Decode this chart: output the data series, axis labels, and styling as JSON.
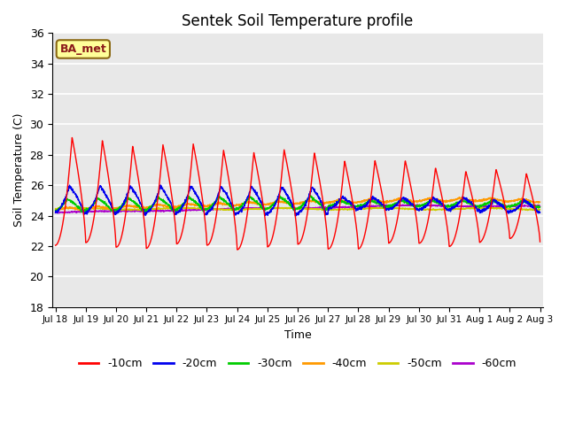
{
  "title": "Sentek Soil Temperature profile",
  "xlabel": "Time",
  "ylabel": "Soil Temperature (C)",
  "ylim": [
    18,
    36
  ],
  "yticks": [
    18,
    20,
    22,
    24,
    26,
    28,
    30,
    32,
    34,
    36
  ],
  "plot_bg_color": "#e8e8e8",
  "fig_bg_color": "#ffffff",
  "annotation_text": "BA_met",
  "annotation_fg": "#8b1a1a",
  "annotation_bg": "#ffff99",
  "annotation_border": "#8b6914",
  "legend_entries": [
    "-10cm",
    "-20cm",
    "-30cm",
    "-40cm",
    "-50cm",
    "-60cm"
  ],
  "line_colors": [
    "#ff0000",
    "#0000ee",
    "#00cc00",
    "#ff9900",
    "#cccc00",
    "#aa00cc"
  ],
  "n_days": 16
}
